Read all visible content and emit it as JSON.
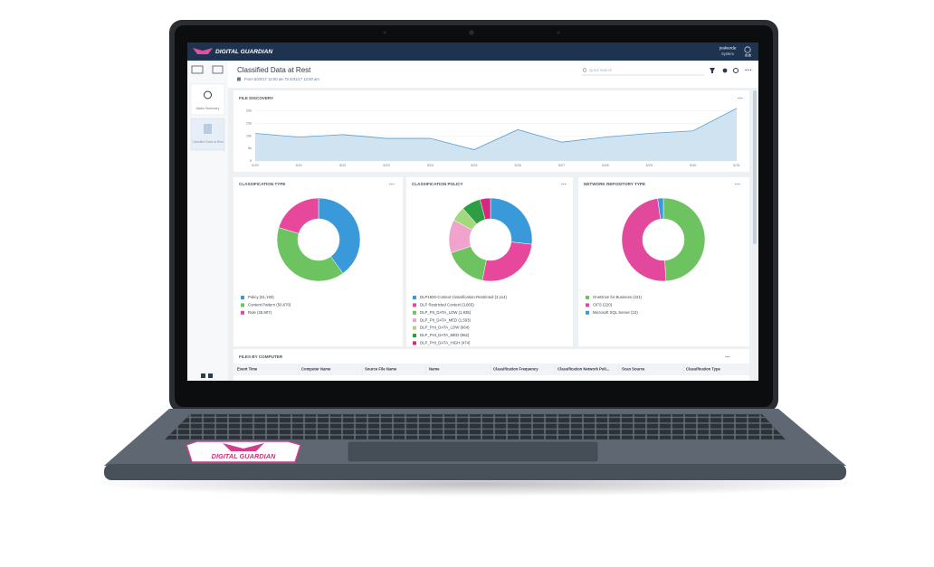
{
  "header": {
    "logo": "DIGITAL GUARDIAN",
    "user": "jvalverde",
    "role": "System",
    "org": "dub"
  },
  "sidebar": {
    "items": [
      "Alarm Summary",
      "Classified Data at Rest"
    ]
  },
  "page": {
    "title": "Classified Data at Rest",
    "date_range": "From 5/20/17 12:00 am To 5/31/17 12:00 am",
    "search_placeholder": "Quick Search"
  },
  "chart_data": [
    {
      "type": "area",
      "title": "FILE DISCOVERY",
      "categories": [
        "5/20",
        "5/21",
        "5/22",
        "5/23",
        "5/24",
        "5/25",
        "5/26",
        "5/27",
        "5/28",
        "5/29",
        "5/30",
        "5/31"
      ],
      "values": [
        11000,
        9500,
        10500,
        9000,
        9000,
        4500,
        12500,
        7500,
        9500,
        11000,
        12000,
        21000
      ],
      "color": "#5aa0d6",
      "fill": "#cfe3f1",
      "ylim": [
        0,
        22000
      ],
      "yticks": [
        0,
        {
          "value": 5000,
          "label": "5k"
        },
        {
          "value": 10000,
          "label": "10k"
        },
        {
          "value": 15000,
          "label": "15k"
        },
        {
          "value": 20000,
          "label": "20k"
        }
      ],
      "grid": true
    },
    {
      "type": "donut",
      "title": "CLASSIFICATION TYPE",
      "categories": [
        "Policy (51,193)",
        "Content Pattern (50,670)",
        "Rule (25,907)"
      ],
      "values": [
        51193,
        50670,
        25907
      ],
      "colors": [
        "#3a9ad9",
        "#6cc35f",
        "#e8489b"
      ]
    },
    {
      "type": "donut",
      "title": "CLASSIFICATION POLICY",
      "categories": [
        "DLP1600-Context Classification-Restricted (3,114)",
        "DLP Restricted Context (3,065)",
        "DLP_PII_DATA_LOW (1,935)",
        "DLP_PII_DATA_MED (1,503)",
        "DLP_PHI_DATA_LOW (664)",
        "DLP_PHI_DATA_MED (862)",
        "DLP_PHI_DATA_HIGH (474)"
      ],
      "values": [
        3114,
        3065,
        1935,
        1503,
        664,
        862,
        474
      ],
      "colors": [
        "#3a9ad9",
        "#e8489b",
        "#6cc35f",
        "#f2a3cc",
        "#a3d97c",
        "#2e9e44",
        "#d6287e"
      ]
    },
    {
      "type": "donut",
      "title": "NETWORK REPOSITORY TYPE",
      "categories": [
        "OneDrive for Business (221)",
        "CIFS (220)",
        "Microsoft SQL Server (10)"
      ],
      "values": [
        221,
        220,
        10
      ],
      "colors": [
        "#6cc35f",
        "#e2489b",
        "#3a9ad9"
      ]
    }
  ],
  "table": {
    "title": "FILES BY COMPUTER",
    "columns": [
      "Event Time",
      "Computer Name",
      "Source File Name",
      "Name",
      "Classification Frequency",
      "Classification Network Poli...",
      "Scan Source",
      "Classification Type"
    ]
  },
  "sticker": "DIGITAL GUARDIAN"
}
